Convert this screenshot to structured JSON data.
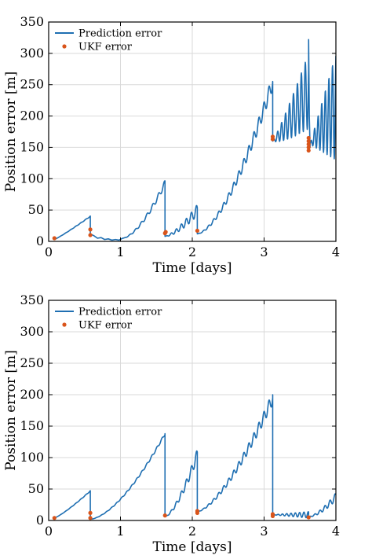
{
  "chart_data": [
    {
      "type": "line",
      "xlabel": "Time [days]",
      "ylabel": "Position error [m]",
      "xlim": [
        0,
        4
      ],
      "ylim": [
        0,
        350
      ],
      "xticks": [
        0,
        1,
        2,
        3,
        4
      ],
      "yticks": [
        0,
        50,
        100,
        150,
        200,
        250,
        300,
        350
      ],
      "grid": true,
      "legend_position": "top-left",
      "series": [
        {
          "name": "Prediction error",
          "kind": "line",
          "color": "#1f6fb2",
          "segments": [
            {
              "type": "growth",
              "x0": 0.08,
              "x1": 0.58,
              "y0": 3,
              "y1": 40,
              "p": 1.1,
              "amp": 0.5,
              "period": 0.07
            },
            {
              "type": "drop",
              "x": 0.58,
              "from": 40,
              "to": 12
            },
            {
              "type": "points",
              "pts": [
                [
                  0.58,
                  12
                ],
                [
                  0.63,
                  9
                ],
                [
                  0.68,
                  5
                ],
                [
                  0.73,
                  6
                ],
                [
                  0.78,
                  3
                ],
                [
                  0.83,
                  4
                ],
                [
                  0.88,
                  2
                ],
                [
                  0.93,
                  3
                ],
                [
                  0.98,
                  2
                ],
                [
                  1.03,
                  5
                ]
              ]
            },
            {
              "type": "growth",
              "x0": 1.03,
              "x1": 1.62,
              "y0": 5,
              "y1": 93,
              "p": 1.6,
              "amp": 5,
              "period": 0.08
            },
            {
              "type": "drop",
              "x": 1.62,
              "from": 93,
              "to": 8
            },
            {
              "type": "growth",
              "x0": 1.62,
              "x1": 2.07,
              "y0": 8,
              "y1": 50,
              "p": 1.5,
              "amp": 9,
              "period": 0.07
            },
            {
              "type": "drop",
              "x": 2.07,
              "from": 50,
              "to": 12
            },
            {
              "type": "growth",
              "x0": 2.07,
              "x1": 3.12,
              "y0": 12,
              "y1": 255,
              "p": 1.6,
              "amp": 12,
              "period": 0.07
            },
            {
              "type": "drop",
              "x": 3.12,
              "from": 255,
              "to": 160
            },
            {
              "type": "growth",
              "x0": 3.12,
              "x1": 3.62,
              "y0": 160,
              "y1": 240,
              "p": 1.2,
              "amp": 60,
              "period": 0.055
            },
            {
              "type": "points",
              "pts": [
                [
                  3.62,
                  322
                ],
                [
                  3.63,
                  200
                ],
                [
                  3.64,
                  150
                ]
              ]
            },
            {
              "type": "growth",
              "x0": 3.64,
              "x1": 4.0,
              "y0": 155,
              "y1": 215,
              "p": 1.0,
              "amp": 85,
              "period": 0.05
            }
          ]
        },
        {
          "name": "UKF error",
          "kind": "markers",
          "color": "#d9541a",
          "points": [
            [
              0.08,
              5
            ],
            [
              0.58,
              19
            ],
            [
              0.58,
              10
            ],
            [
              1.62,
              13
            ],
            [
              1.63,
              15
            ],
            [
              2.07,
              17
            ],
            [
              3.12,
              163
            ],
            [
              3.12,
              167
            ],
            [
              3.62,
              145
            ],
            [
              3.62,
              150
            ],
            [
              3.62,
              155
            ],
            [
              3.62,
              160
            ],
            [
              3.62,
              165
            ]
          ]
        }
      ]
    },
    {
      "type": "line",
      "xlabel": "Time [days]",
      "ylabel": "Position error [m]",
      "xlim": [
        0,
        4
      ],
      "ylim": [
        0,
        350
      ],
      "xticks": [
        0,
        1,
        2,
        3,
        4
      ],
      "yticks": [
        0,
        50,
        100,
        150,
        200,
        250,
        300,
        350
      ],
      "grid": true,
      "legend_position": "top-left",
      "series": [
        {
          "name": "Prediction error",
          "kind": "line",
          "color": "#1f6fb2",
          "segments": [
            {
              "type": "growth",
              "x0": 0.08,
              "x1": 0.58,
              "y0": 4,
              "y1": 47,
              "p": 1.2,
              "amp": 0.5,
              "period": 0.07
            },
            {
              "type": "drop",
              "x": 0.58,
              "from": 47,
              "to": 2
            },
            {
              "type": "growth",
              "x0": 0.58,
              "x1": 1.62,
              "y0": 2,
              "y1": 138,
              "p": 1.6,
              "amp": 2,
              "period": 0.07
            },
            {
              "type": "drop",
              "x": 1.62,
              "from": 138,
              "to": 6
            },
            {
              "type": "growth",
              "x0": 1.62,
              "x1": 2.07,
              "y0": 6,
              "y1": 105,
              "p": 1.5,
              "amp": 9,
              "period": 0.07
            },
            {
              "type": "drop",
              "x": 2.07,
              "from": 105,
              "to": 14
            },
            {
              "type": "growth",
              "x0": 2.07,
              "x1": 3.12,
              "y0": 14,
              "y1": 195,
              "p": 1.5,
              "amp": 10,
              "period": 0.07
            },
            {
              "type": "drop",
              "x": 3.12,
              "from": 200,
              "to": 5
            },
            {
              "type": "growth",
              "x0": 3.12,
              "x1": 3.62,
              "y0": 9,
              "y1": 9,
              "p": 1.0,
              "amp": 5,
              "period": 0.06
            },
            {
              "type": "growth",
              "x0": 3.62,
              "x1": 4.0,
              "y0": 6,
              "y1": 38,
              "p": 1.6,
              "amp": 6,
              "period": 0.07
            }
          ]
        },
        {
          "name": "UKF error",
          "kind": "markers",
          "color": "#d9541a",
          "points": [
            [
              0.08,
              4
            ],
            [
              0.58,
              12
            ],
            [
              0.58,
              4
            ],
            [
              1.62,
              8
            ],
            [
              2.07,
              12
            ],
            [
              2.07,
              15
            ],
            [
              3.12,
              7
            ],
            [
              3.12,
              10
            ],
            [
              3.62,
              5
            ]
          ]
        }
      ]
    }
  ]
}
